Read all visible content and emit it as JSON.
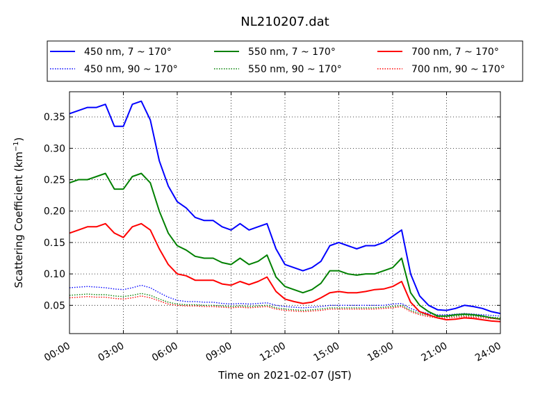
{
  "chart_data": {
    "type": "line",
    "title": "NL210207.dat",
    "xlabel": "Time on 2021-02-07 (JST)",
    "ylabel": "Scattering Coefficient (km",
    "ylabel_sup": "−1",
    "ylabel_close": ")",
    "xlim": [
      0,
      24
    ],
    "ylim": [
      0.005,
      0.39
    ],
    "x_ticks": [
      0,
      3,
      6,
      9,
      12,
      15,
      18,
      21,
      24
    ],
    "x_tick_labels": [
      "00:00",
      "03:00",
      "06:00",
      "09:00",
      "12:00",
      "15:00",
      "18:00",
      "21:00",
      "24:00"
    ],
    "y_ticks": [
      0.05,
      0.1,
      0.15,
      0.2,
      0.25,
      0.3,
      0.35
    ],
    "y_tick_labels": [
      "0.05",
      "0.10",
      "0.15",
      "0.20",
      "0.25",
      "0.30",
      "0.35"
    ],
    "grid": true,
    "legend_position": "top",
    "x": [
      0,
      0.5,
      1,
      1.5,
      2,
      2.5,
      3,
      3.5,
      4,
      4.5,
      5,
      5.5,
      6,
      6.5,
      7,
      7.5,
      8,
      8.5,
      9,
      9.5,
      10,
      10.5,
      11,
      11.5,
      12,
      12.5,
      13,
      13.5,
      14,
      14.5,
      15,
      15.5,
      16,
      16.5,
      17,
      17.5,
      18,
      18.5,
      19,
      19.5,
      20,
      20.5,
      21,
      21.5,
      22,
      22.5,
      23,
      23.5,
      24
    ],
    "series": [
      {
        "name": "450 nm, 7 ~ 170°",
        "color": "#0000ff",
        "style": "solid",
        "values": [
          0.355,
          0.36,
          0.365,
          0.365,
          0.37,
          0.335,
          0.335,
          0.37,
          0.375,
          0.345,
          0.28,
          0.24,
          0.215,
          0.205,
          0.19,
          0.185,
          0.185,
          0.175,
          0.17,
          0.18,
          0.17,
          0.175,
          0.18,
          0.14,
          0.115,
          0.11,
          0.105,
          0.11,
          0.12,
          0.145,
          0.15,
          0.145,
          0.14,
          0.145,
          0.145,
          0.15,
          0.16,
          0.17,
          0.1,
          0.065,
          0.05,
          0.043,
          0.042,
          0.045,
          0.05,
          0.048,
          0.045,
          0.04,
          0.037
        ]
      },
      {
        "name": "450 nm, 90 ~ 170°",
        "color": "#0000ff",
        "style": "dotted",
        "values": [
          0.078,
          0.079,
          0.08,
          0.079,
          0.078,
          0.076,
          0.075,
          0.078,
          0.082,
          0.078,
          0.07,
          0.063,
          0.058,
          0.056,
          0.056,
          0.055,
          0.055,
          0.053,
          0.052,
          0.053,
          0.052,
          0.053,
          0.054,
          0.05,
          0.048,
          0.047,
          0.046,
          0.047,
          0.048,
          0.05,
          0.05,
          0.05,
          0.05,
          0.05,
          0.05,
          0.05,
          0.052,
          0.053,
          0.045,
          0.04,
          0.037,
          0.035,
          0.035,
          0.036,
          0.037,
          0.036,
          0.035,
          0.034,
          0.033
        ]
      },
      {
        "name": "550 nm, 7 ~ 170°",
        "color": "#008000",
        "style": "solid",
        "values": [
          0.245,
          0.25,
          0.25,
          0.255,
          0.26,
          0.235,
          0.235,
          0.255,
          0.26,
          0.245,
          0.2,
          0.165,
          0.145,
          0.138,
          0.128,
          0.125,
          0.125,
          0.118,
          0.115,
          0.125,
          0.115,
          0.12,
          0.13,
          0.095,
          0.08,
          0.075,
          0.07,
          0.075,
          0.085,
          0.105,
          0.105,
          0.1,
          0.098,
          0.1,
          0.1,
          0.105,
          0.11,
          0.125,
          0.07,
          0.05,
          0.04,
          0.033,
          0.033,
          0.035,
          0.036,
          0.035,
          0.033,
          0.03,
          0.028
        ]
      },
      {
        "name": "550 nm, 90 ~ 170°",
        "color": "#008000",
        "style": "dotted",
        "values": [
          0.066,
          0.067,
          0.068,
          0.067,
          0.067,
          0.065,
          0.064,
          0.066,
          0.069,
          0.066,
          0.06,
          0.055,
          0.052,
          0.051,
          0.051,
          0.05,
          0.05,
          0.049,
          0.048,
          0.049,
          0.048,
          0.049,
          0.05,
          0.046,
          0.044,
          0.043,
          0.042,
          0.043,
          0.044,
          0.046,
          0.046,
          0.046,
          0.046,
          0.046,
          0.046,
          0.047,
          0.048,
          0.05,
          0.042,
          0.037,
          0.034,
          0.032,
          0.032,
          0.033,
          0.034,
          0.033,
          0.032,
          0.031,
          0.03
        ]
      },
      {
        "name": "700 nm, 7 ~ 170°",
        "color": "#ff0000",
        "style": "solid",
        "values": [
          0.165,
          0.17,
          0.175,
          0.175,
          0.18,
          0.165,
          0.158,
          0.175,
          0.18,
          0.17,
          0.14,
          0.115,
          0.1,
          0.097,
          0.09,
          0.09,
          0.09,
          0.084,
          0.082,
          0.088,
          0.083,
          0.088,
          0.095,
          0.072,
          0.06,
          0.056,
          0.053,
          0.055,
          0.062,
          0.07,
          0.072,
          0.07,
          0.07,
          0.072,
          0.075,
          0.076,
          0.08,
          0.088,
          0.055,
          0.04,
          0.035,
          0.03,
          0.027,
          0.028,
          0.03,
          0.029,
          0.027,
          0.025,
          0.024
        ]
      },
      {
        "name": "700 nm, 90 ~ 170°",
        "color": "#ff0000",
        "style": "dotted",
        "values": [
          0.062,
          0.063,
          0.064,
          0.063,
          0.063,
          0.061,
          0.06,
          0.062,
          0.065,
          0.062,
          0.057,
          0.052,
          0.05,
          0.049,
          0.049,
          0.048,
          0.048,
          0.047,
          0.046,
          0.047,
          0.046,
          0.047,
          0.048,
          0.044,
          0.042,
          0.041,
          0.04,
          0.041,
          0.042,
          0.044,
          0.044,
          0.044,
          0.044,
          0.044,
          0.044,
          0.045,
          0.046,
          0.048,
          0.04,
          0.035,
          0.032,
          0.03,
          0.03,
          0.031,
          0.032,
          0.031,
          0.03,
          0.029,
          0.028
        ]
      }
    ]
  }
}
